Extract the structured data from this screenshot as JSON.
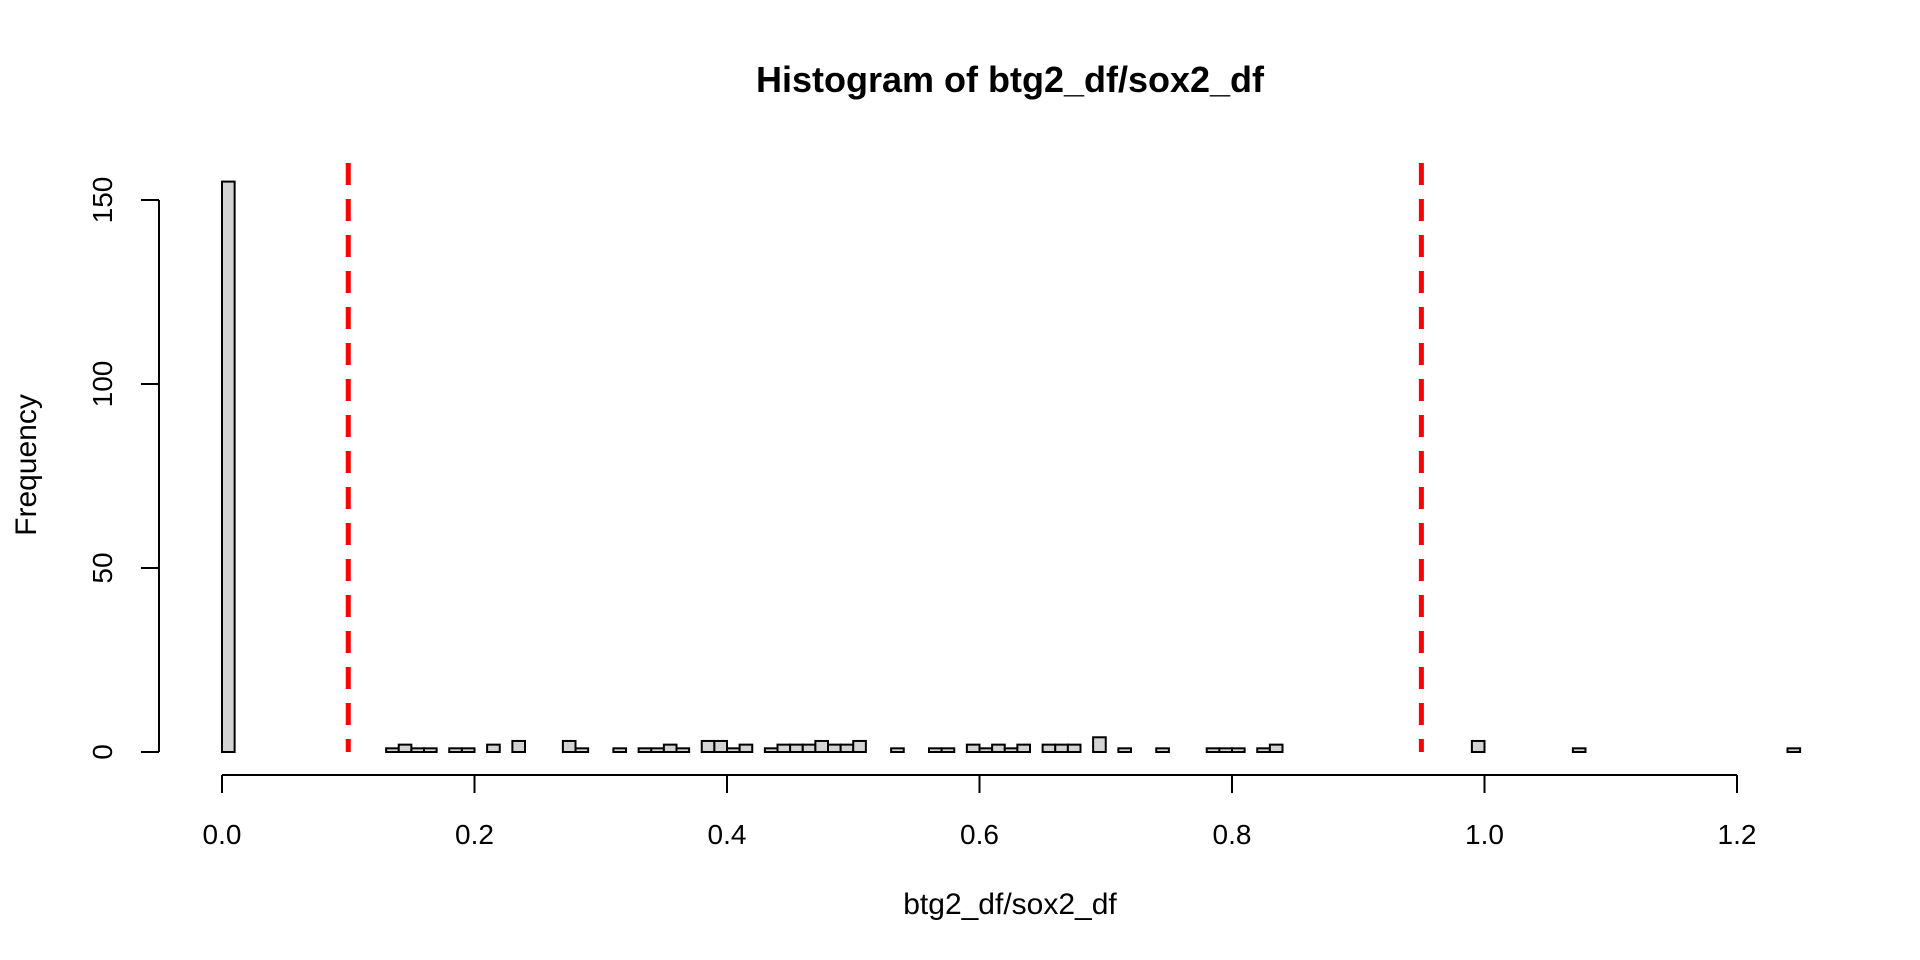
{
  "chart_data": {
    "type": "histogram",
    "title": "Histogram of btg2_df/sox2_df",
    "xlabel": "btg2_df/sox2_df",
    "ylabel": "Frequency",
    "xlim": [
      0,
      1.25
    ],
    "ylim": [
      0,
      160
    ],
    "bin_width": 0.01,
    "x_ticks": [
      "0.0",
      "0.2",
      "0.4",
      "0.6",
      "0.8",
      "1.0",
      "1.2"
    ],
    "x_tick_values": [
      0,
      0.2,
      0.4,
      0.6,
      0.8,
      1.0,
      1.2
    ],
    "y_ticks": [
      "0",
      "50",
      "100",
      "150"
    ],
    "y_tick_values": [
      0,
      50,
      100,
      150
    ],
    "grid": false,
    "counts": [
      155,
      0,
      0,
      0,
      0,
      0,
      0,
      0,
      0,
      0,
      0,
      0,
      0,
      1,
      2,
      1,
      1,
      0,
      1,
      1,
      0,
      2,
      0,
      3,
      0,
      0,
      0,
      3,
      1,
      0,
      0,
      1,
      0,
      1,
      1,
      2,
      1,
      0,
      3,
      3,
      1,
      2,
      0,
      1,
      2,
      2,
      2,
      3,
      2,
      2,
      3,
      0,
      0,
      1,
      0,
      0,
      1,
      1,
      0,
      2,
      1,
      2,
      1,
      2,
      0,
      2,
      2,
      2,
      0,
      4,
      0,
      1,
      0,
      0,
      1,
      0,
      0,
      0,
      1,
      1,
      1,
      0,
      1,
      2,
      0,
      0,
      0,
      0,
      0,
      0,
      0,
      0,
      0,
      0,
      0,
      0,
      0,
      0,
      0,
      3,
      0,
      0,
      0,
      0,
      0,
      0,
      0,
      1,
      0,
      0,
      0,
      0,
      0,
      0,
      0,
      0,
      0,
      0,
      0,
      0,
      0,
      0,
      0,
      0,
      1
    ],
    "reference_lines": [
      {
        "x": 0.1,
        "color": "#ff0000",
        "style": "dashed"
      },
      {
        "x": 0.95,
        "color": "#ff0000",
        "style": "dashed"
      }
    ],
    "colors": {
      "bar_fill": "#d3d3d3",
      "bar_stroke": "#000000",
      "reference": "#ff0000"
    }
  }
}
